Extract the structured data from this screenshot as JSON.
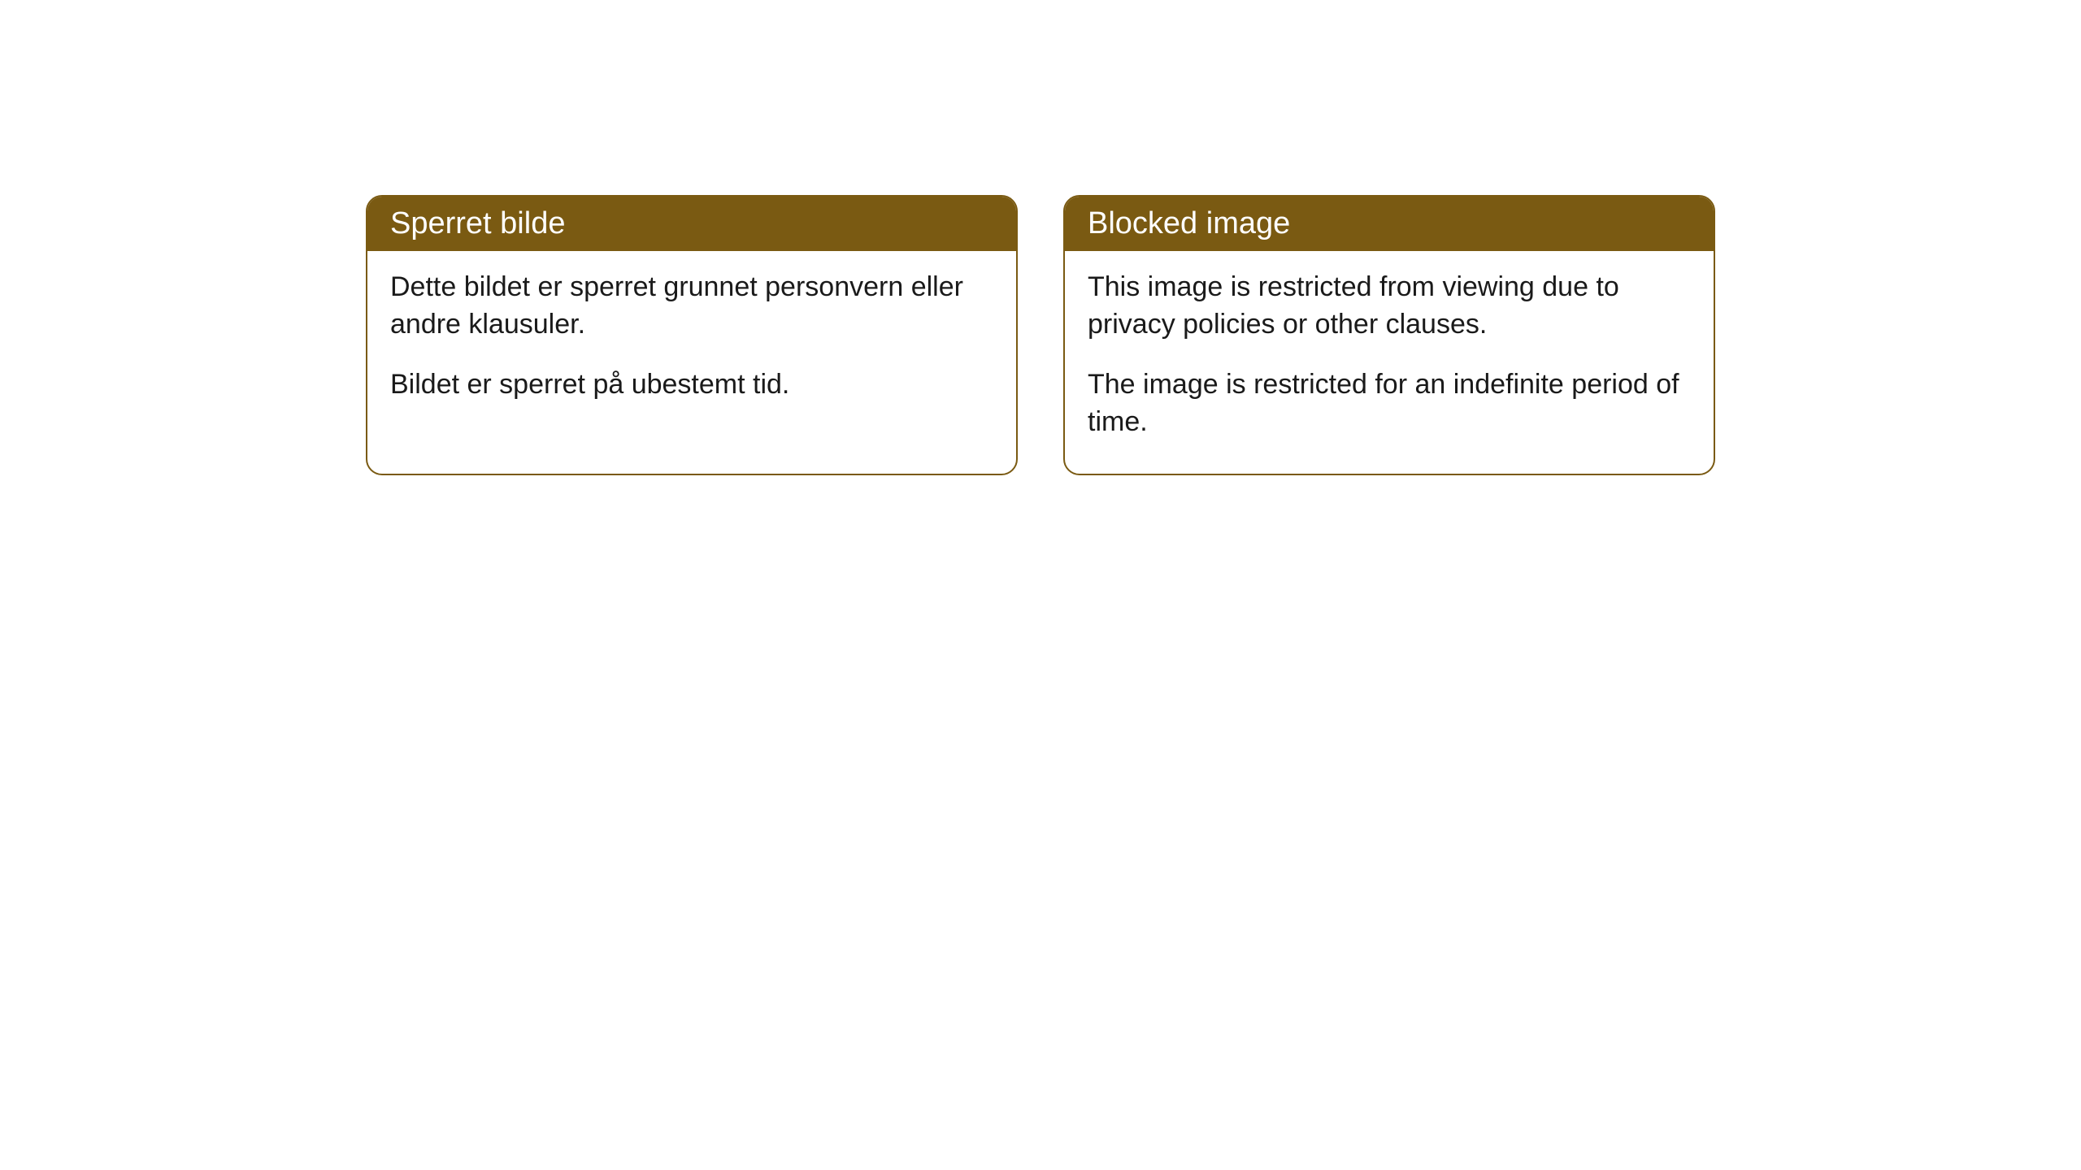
{
  "cards": [
    {
      "title": "Sperret bilde",
      "p1": "Dette bildet er sperret grunnet personvern eller andre klausuler.",
      "p2": "Bildet er sperret på ubestemt tid."
    },
    {
      "title": "Blocked image",
      "p1": "This image is restricted from viewing due to privacy policies or other clauses.",
      "p2": "The image is restricted for an indefinite period of time."
    }
  ],
  "styling": {
    "header_bg": "#7a5a12",
    "header_text_color": "#ffffff",
    "border_color": "#7a5a12",
    "body_text_color": "#1a1a1a",
    "background_color": "#ffffff",
    "border_radius": 20,
    "header_fontsize": 38,
    "body_fontsize": 34
  }
}
